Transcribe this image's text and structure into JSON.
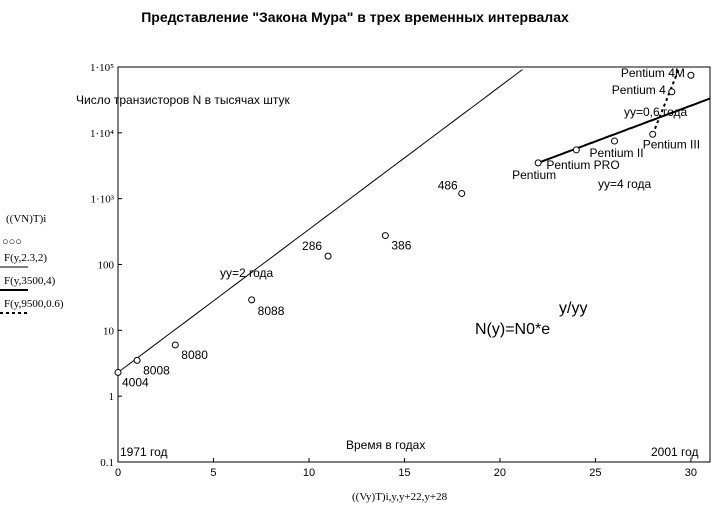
{
  "chart_data": {
    "type": "scatter",
    "title": "Представление \"Закона Мура\" в трех временных интервалах",
    "xlabel": "((Vy)T)i,y,y+22,y+28",
    "ylabel": "((VN)T)i",
    "x_axis_text": "Время в годах",
    "y_axis_text": "Число транзисторов N в тысячах штук",
    "start_text": "1971 год",
    "end_text": "2001 год",
    "formula_main": "N(y)=N0*e",
    "formula_exp": "y/yy",
    "xlim": [
      0,
      31
    ],
    "ylim": [
      0.1,
      100000
    ],
    "yscale": "log",
    "x_ticks": [
      0,
      5,
      10,
      15,
      20,
      25,
      30
    ],
    "y_ticks": [
      {
        "v": 0.1,
        "label": "0.1"
      },
      {
        "v": 1,
        "label": "1"
      },
      {
        "v": 10,
        "label": "10"
      },
      {
        "v": 100,
        "label": "100"
      },
      {
        "v": 1000,
        "label": "1·10³"
      },
      {
        "v": 10000,
        "label": "1·10⁴"
      },
      {
        "v": 100000,
        "label": "1·10⁵"
      }
    ],
    "legend": [
      {
        "label": "((VN)T)i",
        "marker": "○○○"
      },
      {
        "label": "F(y,2.3,2)",
        "style": "thin"
      },
      {
        "label": "F(y,3500,4)",
        "style": "thick"
      },
      {
        "label": "F(y,9500,0.6)",
        "style": "dotted"
      }
    ],
    "points": [
      {
        "x": 0,
        "y": 2.3,
        "label": "4004"
      },
      {
        "x": 1,
        "y": 3.5,
        "label": "8008"
      },
      {
        "x": 3,
        "y": 6,
        "label": "8080"
      },
      {
        "x": 7,
        "y": 29,
        "label": "8088"
      },
      {
        "x": 11,
        "y": 134,
        "label": "286"
      },
      {
        "x": 14,
        "y": 275,
        "label": "386"
      },
      {
        "x": 18,
        "y": 1200,
        "label": "486"
      },
      {
        "x": 22,
        "y": 3500,
        "label": "Pentium"
      },
      {
        "x": 24,
        "y": 5500,
        "label": "Pentium PRO"
      },
      {
        "x": 26,
        "y": 7500,
        "label": "Pentium II"
      },
      {
        "x": 28,
        "y": 9500,
        "label": "Pentium III"
      },
      {
        "x": 29,
        "y": 42000,
        "label": "Pentium 4"
      },
      {
        "x": 30,
        "y": 75000,
        "label": "Pentium 4M"
      }
    ],
    "series": [
      {
        "name": "F(y,2.3,2)",
        "x_range": [
          0,
          31
        ],
        "N0": 2.3,
        "yy": 2,
        "y_start": 0,
        "style": "thin",
        "annotation": "yy=2 года"
      },
      {
        "name": "F(y,3500,4)",
        "x_range": [
          22,
          31
        ],
        "N0": 3500,
        "yy": 4,
        "y_start": 22,
        "style": "thick",
        "annotation": "yy=4 года"
      },
      {
        "name": "F(y,9500,0.6)",
        "x_range": [
          28,
          30.4
        ],
        "N0": 9500,
        "yy": 0.6,
        "y_start": 28,
        "style": "dotted",
        "annotation": "yy=0,6 года"
      }
    ]
  }
}
